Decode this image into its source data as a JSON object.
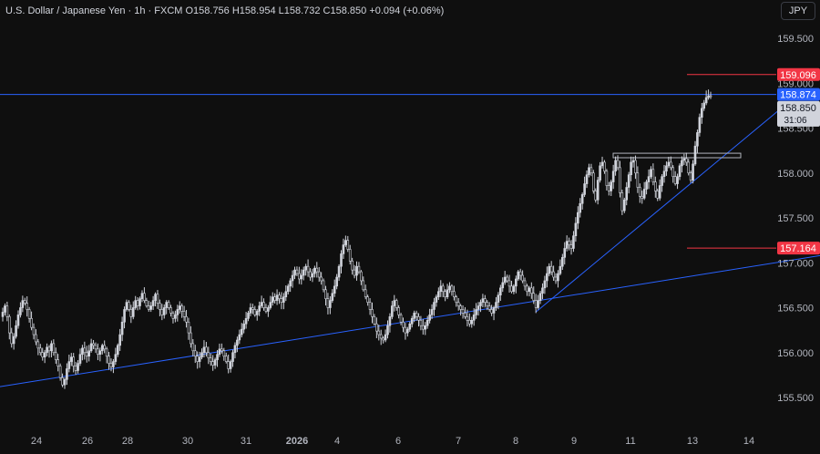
{
  "header": {
    "title": "U.S. Dollar / Japanese Yen · 1h · FXCM O158.756 H158.954 L158.732 C158.850 +0.094 (+0.06%)",
    "currency_button": "JPY"
  },
  "colors": {
    "background": "#0f0f0f",
    "candle": "#d1d4dc",
    "trendline": "#2962ff",
    "level_red": "#f23645",
    "current_price_bg": "#2962ff",
    "axis_text": "#b2b5be"
  },
  "price_labels": {
    "resistance_top": "159.096",
    "current_line": "158.874",
    "last_price": "158.850",
    "countdown": "31:06",
    "support_red": "157.164"
  },
  "chart_data": {
    "type": "candlestick",
    "y_ticks": [
      "155.500",
      "156.000",
      "156.500",
      "157.000",
      "157.500",
      "158.000",
      "158.500",
      "159.000",
      "159.500"
    ],
    "x_ticks": [
      "24",
      "26",
      "28",
      "30",
      "31",
      "2026",
      "4",
      "6",
      "7",
      "8",
      "9",
      "11",
      "13",
      "14"
    ],
    "ylim": [
      155.35,
      159.85
    ],
    "horizontal_levels": [
      {
        "value": 159.096,
        "color": "red"
      },
      {
        "value": 158.874,
        "color": "blue"
      },
      {
        "value": 157.164,
        "color": "red"
      }
    ],
    "consolidation_box": {
      "low": 158.17,
      "high": 158.22
    },
    "trendlines": [
      {
        "from": [
          0,
          155.62
        ],
        "to": [
          900,
          157.08
        ]
      },
      {
        "from": [
          588,
          156.45
        ],
        "to": [
          855,
          158.7
        ]
      }
    ],
    "closes": [
      156.45,
      156.52,
      156.4,
      156.22,
      156.1,
      156.18,
      156.3,
      156.42,
      156.5,
      156.58,
      156.55,
      156.48,
      156.38,
      156.28,
      156.2,
      156.12,
      156.05,
      156.0,
      155.95,
      156.0,
      156.06,
      156.02,
      156.1,
      156.0,
      155.92,
      155.85,
      155.72,
      155.64,
      155.7,
      155.82,
      155.9,
      155.95,
      155.85,
      155.8,
      155.88,
      155.98,
      156.05,
      156.0,
      155.96,
      156.02,
      156.1,
      156.08,
      156.04,
      155.98,
      156.02,
      156.08,
      156.04,
      155.96,
      155.88,
      155.84,
      155.9,
      155.98,
      156.08,
      156.2,
      156.34,
      156.48,
      156.56,
      156.48,
      156.4,
      156.5,
      156.58,
      156.52,
      156.6,
      156.66,
      156.58,
      156.52,
      156.48,
      156.52,
      156.58,
      156.65,
      156.55,
      156.48,
      156.42,
      156.5,
      156.56,
      156.5,
      156.44,
      156.38,
      156.42,
      156.48,
      156.52,
      156.46,
      156.4,
      156.34,
      156.22,
      156.1,
      156.02,
      155.96,
      155.9,
      155.95,
      156.0,
      156.06,
      156.0,
      155.94,
      155.9,
      155.86,
      155.92,
      155.98,
      156.04,
      156.02,
      155.96,
      155.9,
      155.82,
      155.9,
      156.0,
      156.08,
      156.14,
      156.2,
      156.26,
      156.32,
      156.38,
      156.44,
      156.5,
      156.48,
      156.42,
      156.46,
      156.52,
      156.56,
      156.5,
      156.46,
      156.5,
      156.56,
      156.62,
      156.58,
      156.64,
      156.6,
      156.56,
      156.62,
      156.68,
      156.74,
      156.8,
      156.86,
      156.92,
      156.88,
      156.82,
      156.86,
      156.92,
      156.96,
      156.9,
      156.84,
      156.88,
      156.94,
      156.9,
      156.84,
      156.8,
      156.7,
      156.6,
      156.5,
      156.58,
      156.66,
      156.74,
      156.84,
      156.96,
      157.1,
      157.2,
      157.25,
      157.15,
      157.02,
      156.92,
      156.86,
      156.96,
      156.9,
      156.8,
      156.7,
      156.62,
      156.56,
      156.48,
      156.4,
      156.32,
      156.24,
      156.2,
      156.16,
      156.14,
      156.2,
      156.3,
      156.4,
      156.52,
      156.58,
      156.5,
      156.42,
      156.34,
      156.28,
      156.22,
      156.26,
      156.32,
      156.38,
      156.44,
      156.4,
      156.36,
      156.3,
      156.26,
      156.3,
      156.36,
      156.42,
      156.48,
      156.56,
      156.62,
      156.68,
      156.74,
      156.68,
      156.62,
      156.7,
      156.74,
      156.68,
      156.62,
      156.56,
      156.52,
      156.48,
      156.44,
      156.4,
      156.36,
      156.32,
      156.36,
      156.42,
      156.48,
      156.52,
      156.56,
      156.6,
      156.56,
      156.52,
      156.48,
      156.44,
      156.5,
      156.56,
      156.64,
      156.72,
      156.78,
      156.84,
      156.8,
      156.74,
      156.68,
      156.74,
      156.82,
      156.9,
      156.86,
      156.8,
      156.74,
      156.68,
      156.72,
      156.66,
      156.58,
      156.5,
      156.58,
      156.66,
      156.72,
      156.8,
      156.88,
      156.96,
      156.9,
      156.84,
      156.8,
      156.88,
      156.96,
      157.06,
      157.16,
      157.24,
      157.2,
      157.16,
      157.3,
      157.44,
      157.56,
      157.66,
      157.76,
      157.88,
      157.98,
      158.06,
      158.0,
      157.8,
      157.7,
      157.92,
      158.08,
      158.12,
      158.02,
      157.86,
      157.8,
      157.9,
      158.02,
      158.14,
      158.06,
      157.78,
      157.58,
      157.7,
      157.84,
      157.98,
      158.12,
      158.14,
      158.0,
      157.84,
      157.74,
      157.72,
      157.82,
      157.9,
      157.96,
      158.04,
      157.9,
      157.8,
      157.72,
      157.86,
      157.96,
      158.02,
      158.08,
      158.12,
      158.06,
      157.96,
      157.88,
      157.96,
      158.08,
      158.14,
      158.16,
      158.12,
      158.0,
      157.92,
      158.1,
      158.3,
      158.45,
      158.62,
      158.72,
      158.78,
      158.84,
      158.86,
      158.85
    ]
  }
}
